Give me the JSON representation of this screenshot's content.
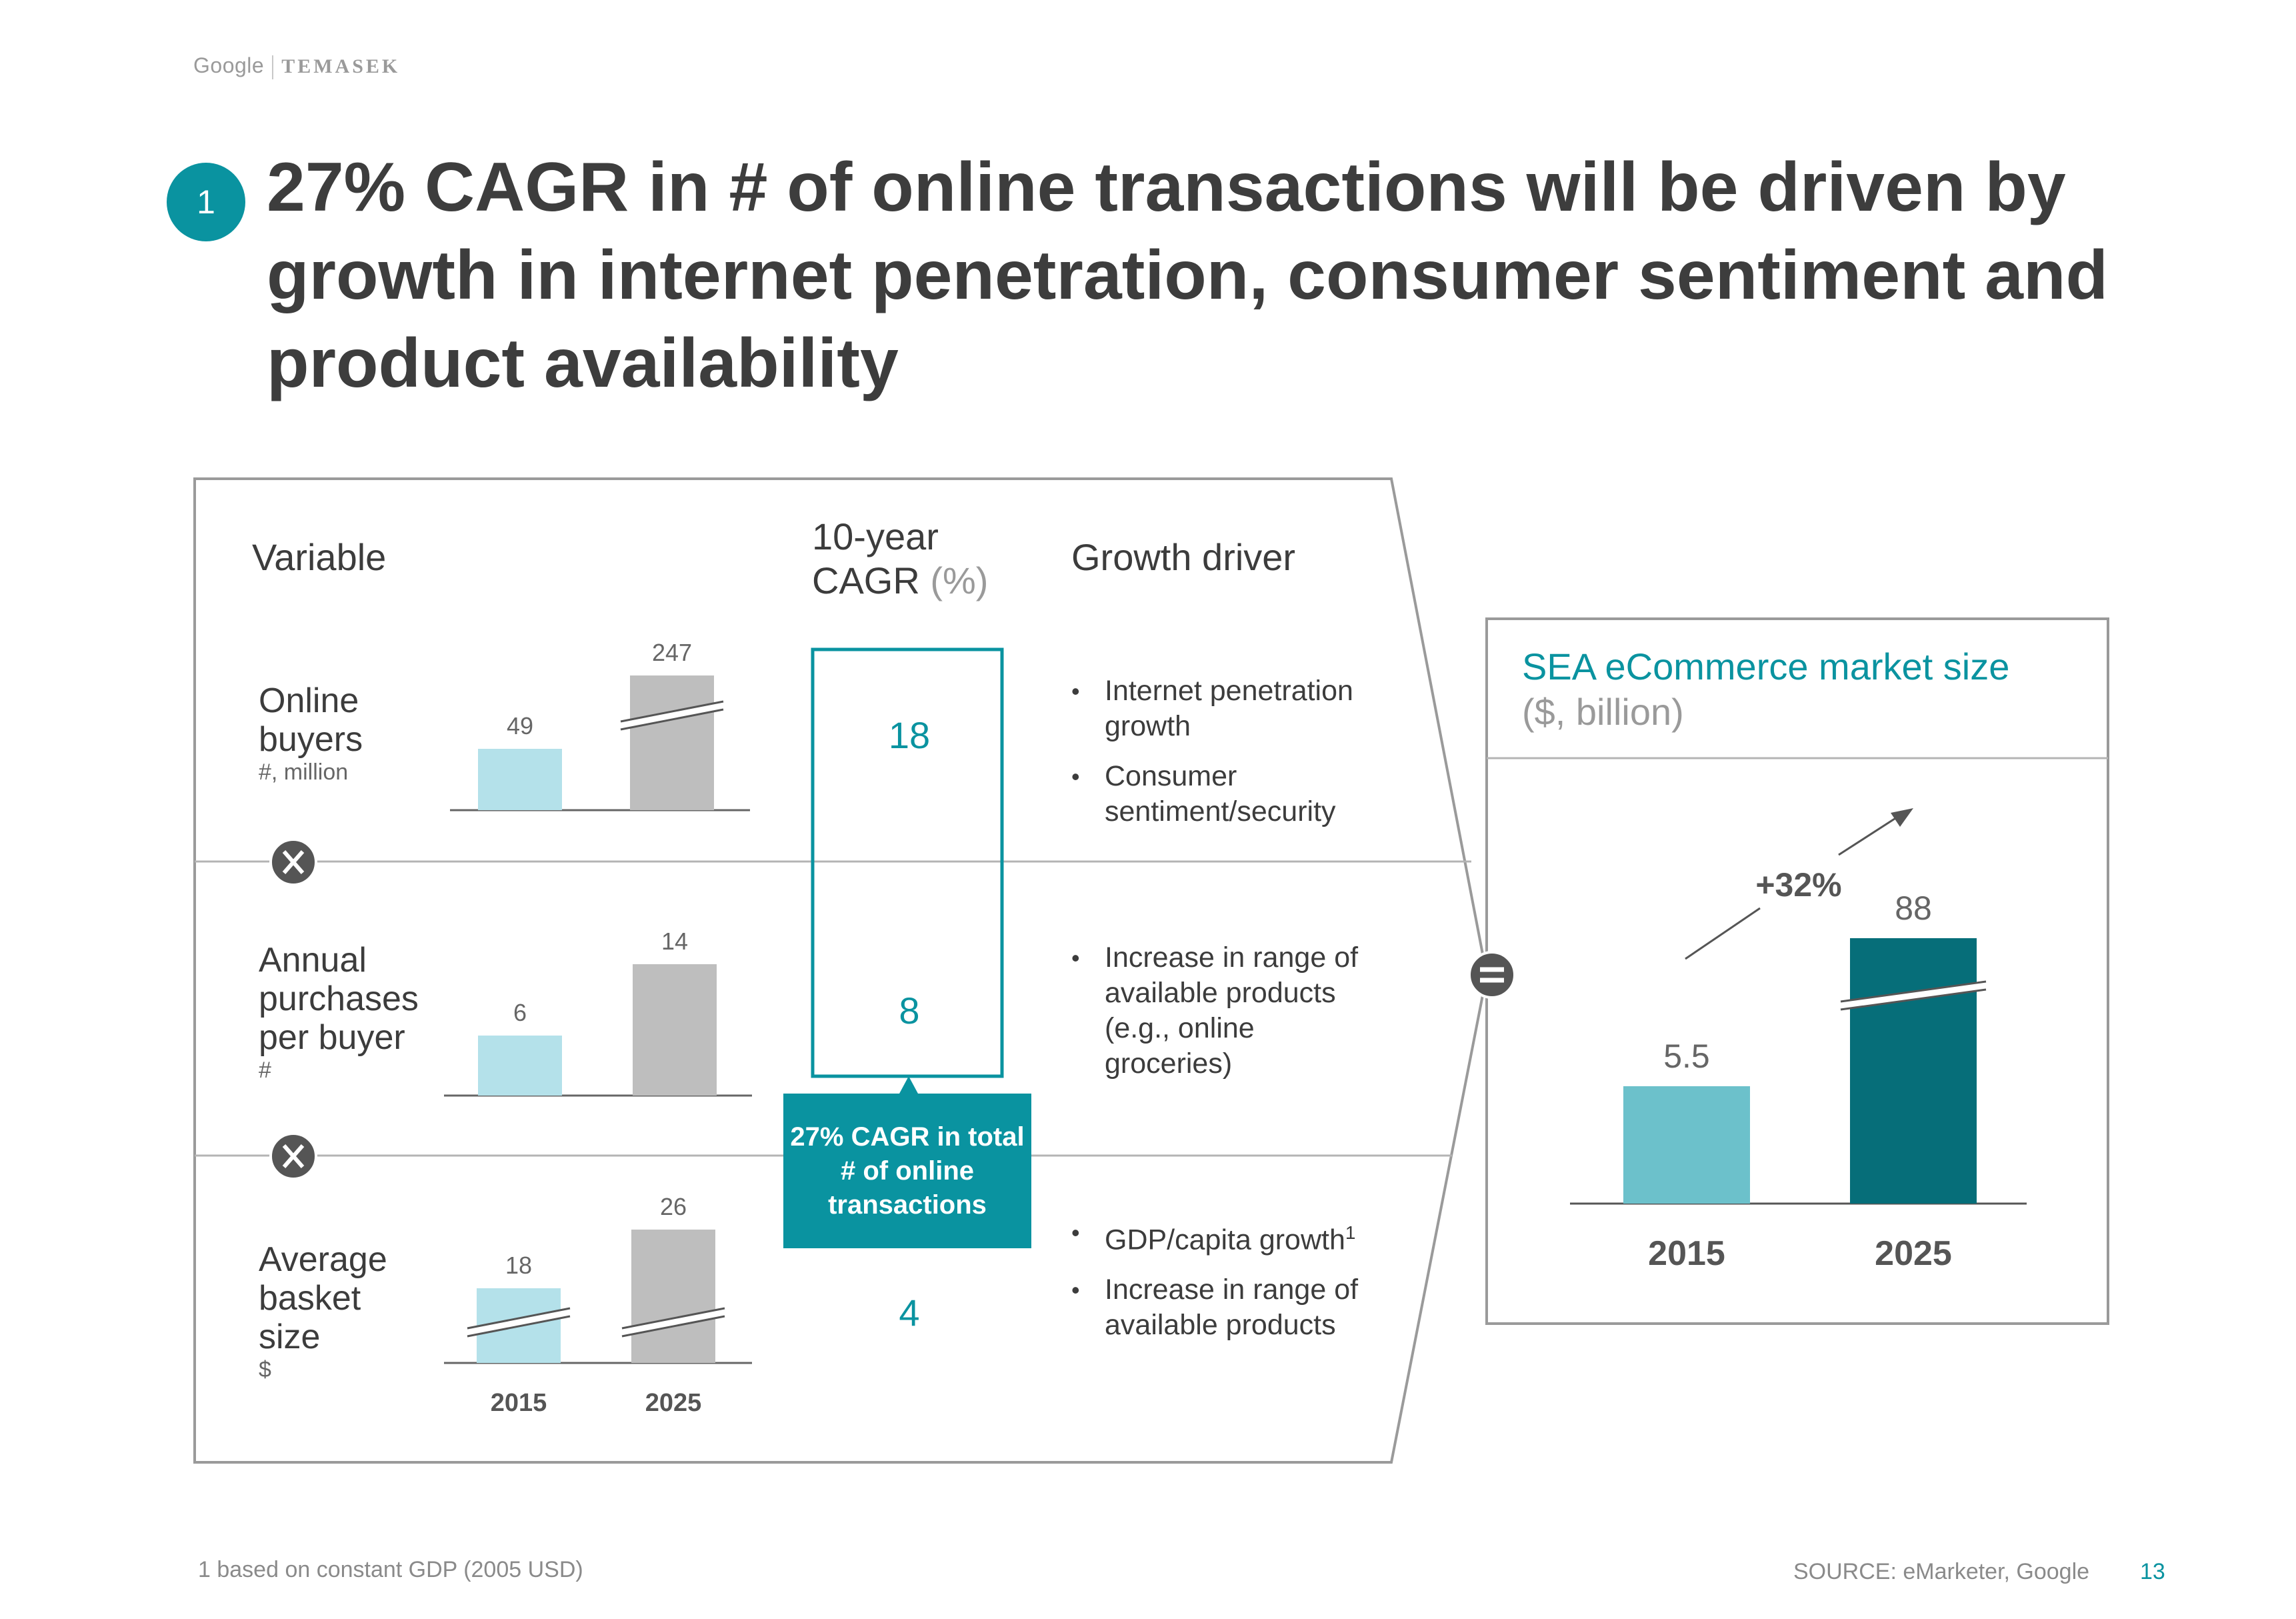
{
  "logo": {
    "google": "Google",
    "temasek": "TEMASEK"
  },
  "slide_number_badge": "1",
  "title": "27% CAGR in # of online transactions will be driven by growth in internet penetration, consumer sentiment and product availability",
  "headers": {
    "variable": "Variable",
    "cagr_line1": "10-year",
    "cagr_line2": "CAGR",
    "cagr_unit": "(%)",
    "growth_driver": "Growth driver"
  },
  "rows": [
    {
      "name_lines": [
        "Online",
        "buyers"
      ],
      "unit": "#, million",
      "cagr": "18",
      "drivers": [
        "Internet penetration growth",
        "Consumer sentiment/security"
      ]
    },
    {
      "name_lines": [
        "Annual",
        "purchases",
        "per buyer"
      ],
      "unit": "#",
      "cagr": "8",
      "drivers": [
        "Increase in range of available products (e.g., online groceries)"
      ]
    },
    {
      "name_lines": [
        "Average",
        "basket",
        "size"
      ],
      "unit": "$",
      "cagr": "4",
      "drivers": [
        "GDP/capita growth",
        "Increase in range of available products"
      ],
      "footnote_marker": "1"
    }
  ],
  "operators": {
    "multiply": "×",
    "equals": "="
  },
  "callout": "27% CAGR in total # of online transactions",
  "chart_data": [
    {
      "type": "bar",
      "title": "Online buyers",
      "ylabel": "#, million",
      "categories": [
        "2015",
        "2025"
      ],
      "values": [
        49,
        247
      ],
      "labels": [
        "49",
        "247"
      ],
      "axis_break": [
        false,
        true
      ]
    },
    {
      "type": "bar",
      "title": "Annual purchases per buyer",
      "ylabel": "#",
      "categories": [
        "2015",
        "2025"
      ],
      "values": [
        6,
        14
      ],
      "labels": [
        "6",
        "14"
      ],
      "axis_break": [
        false,
        false
      ]
    },
    {
      "type": "bar",
      "title": "Average basket size",
      "ylabel": "$",
      "categories": [
        "2015",
        "2025"
      ],
      "values": [
        18,
        26
      ],
      "labels": [
        "18",
        "26"
      ],
      "axis_break": [
        true,
        true
      ]
    },
    {
      "type": "bar",
      "title": "SEA eCommerce market size",
      "subtitle": "($, billion)",
      "categories": [
        "2015",
        "2025"
      ],
      "values": [
        5.5,
        88
      ],
      "labels": [
        "5.5",
        "88"
      ],
      "axis_break": [
        false,
        true
      ],
      "annotation": "+32%"
    }
  ],
  "small_axis_labels": [
    "2015",
    "2025"
  ],
  "colors": {
    "teal": "#0a93a0",
    "light_blue": "#b4e1ea",
    "gray_bar": "#bebebe",
    "mid_teal": "#6cc1cb",
    "dark_teal": "#066e79"
  },
  "footnote": "1 based on constant GDP (2005 USD)",
  "source": "SOURCE: eMarketer, Google",
  "page_number": "13"
}
